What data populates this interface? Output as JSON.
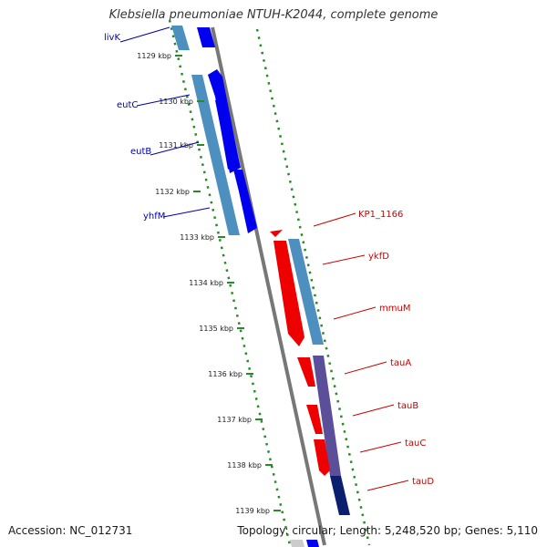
{
  "title": "Klebsiella pneumoniae NTUH-K2044, complete genome",
  "footer": {
    "accession": "Accession: NC_012731",
    "summary": "Topology: circular; Length: 5,248,520 bp; Genes: 5,110"
  },
  "colors": {
    "forward_cds": "#0000ee",
    "reverse_cds": "#ee0000",
    "forward_gene_label": "#0000aa",
    "reverse_gene_label": "#cc0000",
    "feature_bar": "#4d8fbf",
    "feature_bar_dark": "#5b4f9a",
    "feature_bar_navy": "#0b1f6e",
    "backbone": "#777777",
    "dotted_track": "#2a8a2a"
  },
  "scale": {
    "unit": "kbp",
    "ticks": [
      "1129 kbp",
      "1130 kbp",
      "1131 kbp",
      "1132 kbp",
      "1133 kbp",
      "1134 kbp",
      "1135 kbp",
      "1136 kbp",
      "1137 kbp",
      "1138 kbp",
      "1139 kbp"
    ]
  },
  "genes": {
    "forward": [
      "livK",
      "eutC",
      "eutB",
      "yhfM"
    ],
    "reverse": [
      "KP1_1166",
      "ykfD",
      "mmuM",
      "tauA",
      "tauB",
      "tauC",
      "tauD"
    ]
  }
}
